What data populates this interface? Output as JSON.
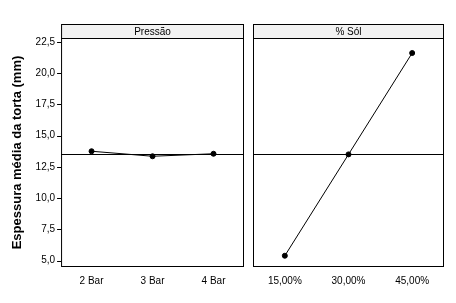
{
  "chart_data": [
    {
      "type": "line",
      "title": "Pressão",
      "y_label": "Espessura média da torta (mm)",
      "categories": [
        "2 Bar",
        "3 Bar",
        "4 Bar"
      ],
      "values": [
        13.75,
        13.35,
        13.55
      ],
      "mean": 13.55,
      "color": "#000000",
      "marker": "circle",
      "ylim": [
        4.5,
        22.8
      ],
      "yticks": [
        {
          "value": 5,
          "label": "5,0"
        },
        {
          "value": 7.5,
          "label": "7,5"
        },
        {
          "value": 10,
          "label": "10,0"
        },
        {
          "value": 12.5,
          "label": "12,5"
        },
        {
          "value": 15,
          "label": "15,0"
        },
        {
          "value": 17.5,
          "label": "17,5"
        },
        {
          "value": 20,
          "label": "20,0"
        },
        {
          "value": 22.5,
          "label": "22,5"
        }
      ]
    },
    {
      "type": "line",
      "title": "% Sól",
      "categories": [
        "15,00%",
        "30,00%",
        "45,00%"
      ],
      "values": [
        5.4,
        13.5,
        21.6
      ],
      "mean": 13.55,
      "color": "#000000",
      "marker": "circle",
      "tick_labels": "x",
      "ylim": [
        4.5,
        22.8
      ],
      "yticks": [
        {
          "value": 5,
          "label": "5,0"
        },
        {
          "value": 7.5,
          "label": "7,5"
        },
        {
          "value": 10,
          "label": "10,0"
        },
        {
          "value": 12.5,
          "label": "12,5"
        },
        {
          "value": 15,
          "label": "15,0"
        },
        {
          "value": 17.5,
          "label": "17,5"
        },
        {
          "value": 20,
          "label": "20,0"
        },
        {
          "value": 22.5,
          "label": "22,5"
        }
      ]
    }
  ]
}
